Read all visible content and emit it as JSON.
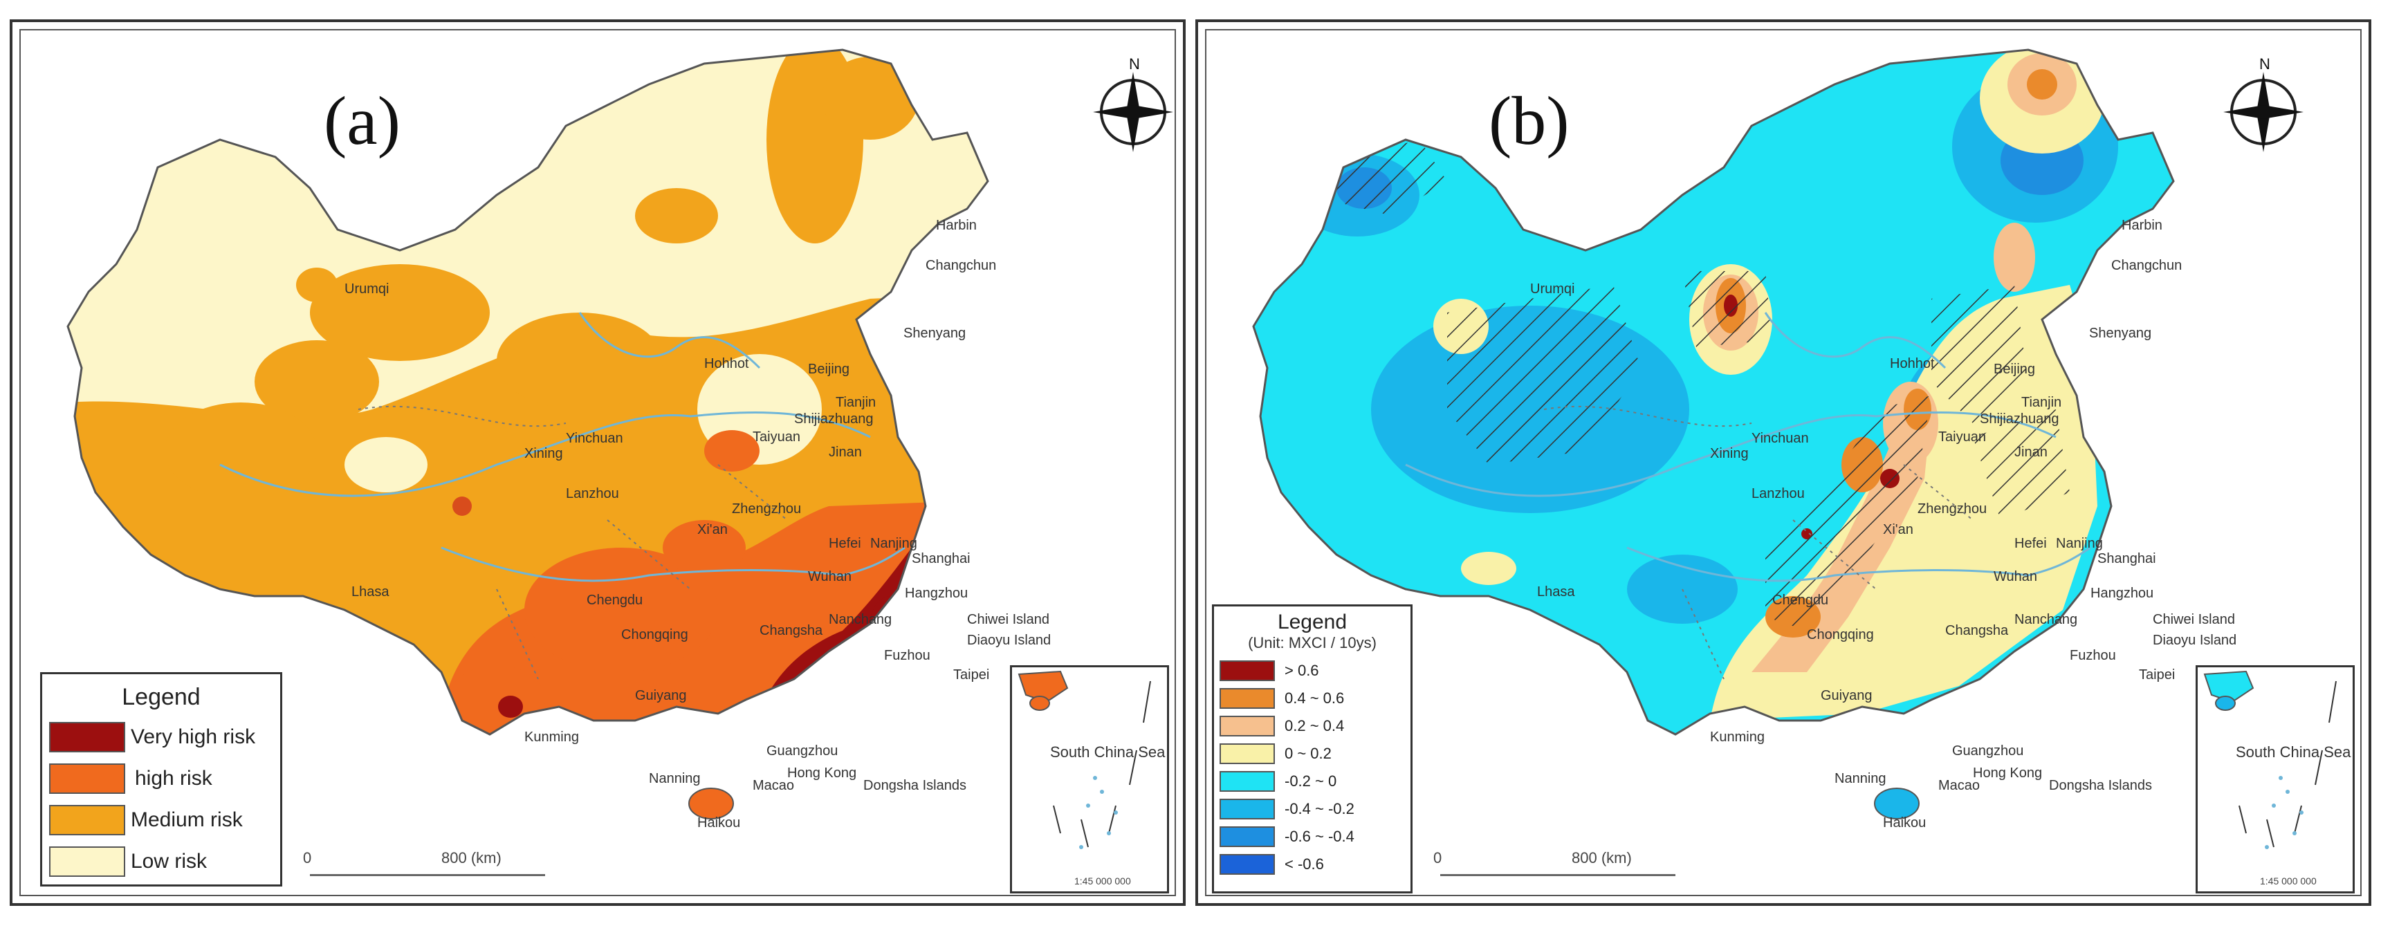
{
  "panels": {
    "a": {
      "label": "(a)",
      "legend": {
        "title": "Legend",
        "items": [
          {
            "label": "Very high risk",
            "color": "#9c0f0f"
          },
          {
            "label": "high risk",
            "color": "#f06a1e"
          },
          {
            "label": "Medium risk",
            "color": "#f2a41c"
          },
          {
            "label": "Low risk",
            "color": "#fdf6c9"
          }
        ]
      },
      "scale": {
        "start": "0",
        "mid": "800 (km)"
      },
      "inset": {
        "title": "South China Sea",
        "scale": "1:45 000 000"
      }
    },
    "b": {
      "label": "(b)",
      "legend": {
        "title": "Legend",
        "subtitle": "(Unit: MXCI / 10ys)",
        "items": [
          {
            "label": "> 0.6",
            "color": "#9c0f0f"
          },
          {
            "label": "0.4 ~ 0.6",
            "color": "#ea8a2c"
          },
          {
            "label": "0.2 ~ 0.4",
            "color": "#f6c08e"
          },
          {
            "label": "0 ~ 0.2",
            "color": "#f9f1a8"
          },
          {
            "label": "-0.2 ~ 0",
            "color": "#1fe3f4"
          },
          {
            "label": "-0.4 ~ -0.2",
            "color": "#1ab6ea"
          },
          {
            "label": "-0.6 ~ -0.4",
            "color": "#1e8fe0"
          },
          {
            "label": "< -0.6",
            "color": "#1b63d9"
          }
        ]
      },
      "scale": {
        "start": "0",
        "mid": "800 (km)"
      },
      "inset": {
        "title": "South China Sea",
        "scale": "1:45 000 000"
      }
    }
  },
  "compass_label": "N",
  "cities_a": [
    "Harbin",
    "Changchun",
    "Shenyang",
    "Urumqi",
    "Hohhot",
    "Beijing",
    "Tianjin",
    "Shijiazhuang",
    "Taiyuan",
    "Yinchuan",
    "Jinan",
    "Xining",
    "Lanzhou",
    "Zhengzhou",
    "Xi'an",
    "Hefei",
    "Nanjing",
    "Shanghai",
    "Hangzhou",
    "Wuhan",
    "Lhasa",
    "Chengdu",
    "Chongqing",
    "Changsha",
    "Nanchang",
    "Fuzhou",
    "Guiyang",
    "Kunming",
    "Nanning",
    "Guangzhou",
    "Hong Kong",
    "Macao",
    "Haikou",
    "Taipei",
    "Diaoyu Island",
    "Chiwei Island",
    "Dongsha Islands"
  ],
  "cities_b": [
    "Harbin",
    "Changchun",
    "Shenyang",
    "Urumqi",
    "Hohhot",
    "Beijing",
    "Tianjin",
    "Shijiazhuang",
    "Taiyuan",
    "Yinchuan",
    "Jinan",
    "Xining",
    "Lanzhou",
    "Zhengzhou",
    "Xi'an",
    "Hefei",
    "Nanjing",
    "Shanghai",
    "Hangzhou",
    "Wuhan",
    "Lhasa",
    "Chengdu",
    "Chongqing",
    "Changsha",
    "Nanchang",
    "Fuzhou",
    "Guiyang",
    "Kunming",
    "Nanning",
    "Guangzhou",
    "Hong Kong",
    "Macao",
    "Haikou",
    "Taipei",
    "Diaoyu Island",
    "Chiwei Island",
    "Dongsha Islands"
  ],
  "colors": {
    "river": "#6fb6d8",
    "boundary": "#555555"
  }
}
